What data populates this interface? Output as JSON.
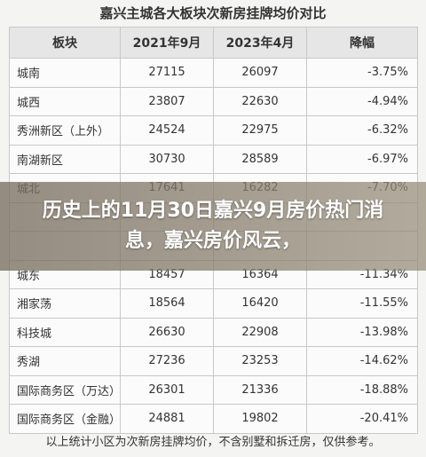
{
  "table": {
    "title": "嘉兴主城各大板块次新房挂牌均价对比",
    "header": [
      "板块",
      "2021年9月",
      "2023年4月",
      "降幅"
    ],
    "rows": [
      [
        "城南",
        "27115",
        "26097",
        "-3.75%"
      ],
      [
        "城西",
        "23807",
        "22630",
        "-4.94%"
      ],
      [
        "秀洲新区（上外）",
        "24524",
        "22975",
        "-6.32%"
      ],
      [
        "南湖新区",
        "30730",
        "28589",
        "-6.97%"
      ],
      [
        "城北",
        "17641",
        "16282",
        "-7.70%"
      ],
      [
        "城东",
        "18457",
        "16364",
        "-11.34%"
      ],
      [
        "湘家荡",
        "18564",
        "16420",
        "-11.55%"
      ],
      [
        "科技城",
        "26630",
        "22908",
        "-13.98%"
      ],
      [
        "秀湖",
        "27236",
        "23253",
        "-14.62%"
      ],
      [
        "国际商务区（万达）",
        "26301",
        "21336",
        "-18.88%"
      ],
      [
        "国际商务区（金融）",
        "24881",
        "19802",
        "-20.41%"
      ]
    ],
    "footnote": "以上统计小区为次新房挂牌均价，不含别墅和拆迁房，仅供参考。"
  },
  "overlay": {
    "headline": "历史上的11月30日嘉兴9月房价热门消息，嘉兴房价风云，"
  }
}
